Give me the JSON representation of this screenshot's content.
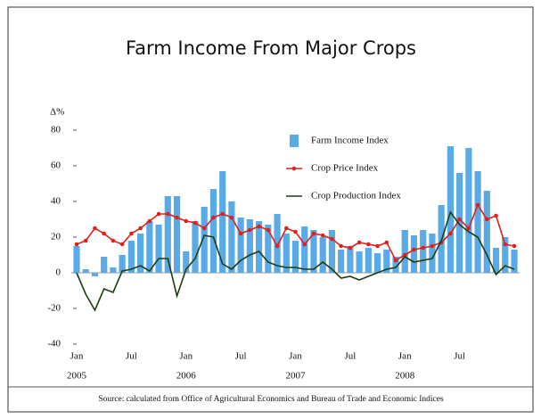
{
  "chart_data": {
    "type": "combo",
    "title": "Farm Income From Major Crops",
    "y_label": "Δ%",
    "source": "Source: calculated from Office of Agricultural Economics and Bureau of Trade and Economic Indices",
    "categories": [
      "Jan",
      null,
      null,
      null,
      null,
      null,
      "Jul",
      null,
      null,
      null,
      null,
      null,
      "Jan",
      null,
      null,
      null,
      null,
      null,
      "Jul",
      null,
      null,
      null,
      null,
      null,
      "Jan",
      null,
      null,
      null,
      null,
      null,
      "Jul",
      null,
      null,
      null,
      null,
      null,
      "Jan",
      null,
      null,
      null,
      null,
      null,
      "Jul",
      null,
      null,
      null,
      null,
      null,
      null
    ],
    "years": [
      "2005",
      null,
      null,
      null,
      null,
      null,
      null,
      null,
      null,
      null,
      null,
      null,
      "2006",
      null,
      null,
      null,
      null,
      null,
      null,
      null,
      null,
      null,
      null,
      null,
      "2007",
      null,
      null,
      null,
      null,
      null,
      null,
      null,
      null,
      null,
      null,
      null,
      "2008",
      null,
      null,
      null,
      null,
      null,
      null,
      null,
      null,
      null,
      null,
      null,
      null
    ],
    "series": [
      {
        "name": "Farm Income Index",
        "type": "bar",
        "color": "#5aaae6",
        "values": [
          15,
          2,
          -2,
          9,
          3,
          10,
          18,
          22,
          29,
          27,
          43,
          43,
          12,
          29,
          37,
          47,
          57,
          40,
          31,
          30,
          29,
          27,
          33,
          22,
          18,
          26,
          24,
          20,
          24,
          13,
          15,
          12,
          14,
          11,
          13,
          9,
          24,
          21,
          24,
          22,
          38,
          71,
          56,
          70,
          57,
          46,
          14,
          20,
          13
        ]
      },
      {
        "name": "Crop Price Index",
        "type": "line",
        "marker": true,
        "color": "#e0201b",
        "values": [
          16,
          18,
          25,
          22,
          18,
          16,
          22,
          25,
          29,
          33,
          33,
          31,
          29,
          28,
          25,
          31,
          33,
          31,
          22,
          24,
          26,
          24,
          15,
          25,
          23,
          16,
          22,
          21,
          19,
          15,
          14,
          17,
          16,
          15,
          17,
          7,
          10,
          13,
          14,
          15,
          17,
          22,
          30,
          25,
          38,
          30,
          32,
          16,
          15
        ]
      },
      {
        "name": "Crop Production Index",
        "type": "line",
        "marker": false,
        "color": "#1f3d12",
        "values": [
          0,
          -12,
          -21,
          -9,
          -11,
          1,
          2,
          4,
          1,
          8,
          8,
          -13,
          2,
          8,
          21,
          20,
          5,
          2,
          7,
          10,
          12,
          6,
          4,
          3,
          3,
          2,
          2,
          6,
          2,
          -3,
          -2,
          -4,
          -2,
          0,
          2,
          3,
          9,
          6,
          7,
          8,
          18,
          34,
          27,
          23,
          20,
          10,
          -1,
          4,
          2
        ]
      }
    ],
    "ylim": [
      -40,
      80
    ],
    "yticks": [
      -40,
      -20,
      0,
      20,
      40,
      60,
      80
    ],
    "legend_position": "upper right"
  }
}
